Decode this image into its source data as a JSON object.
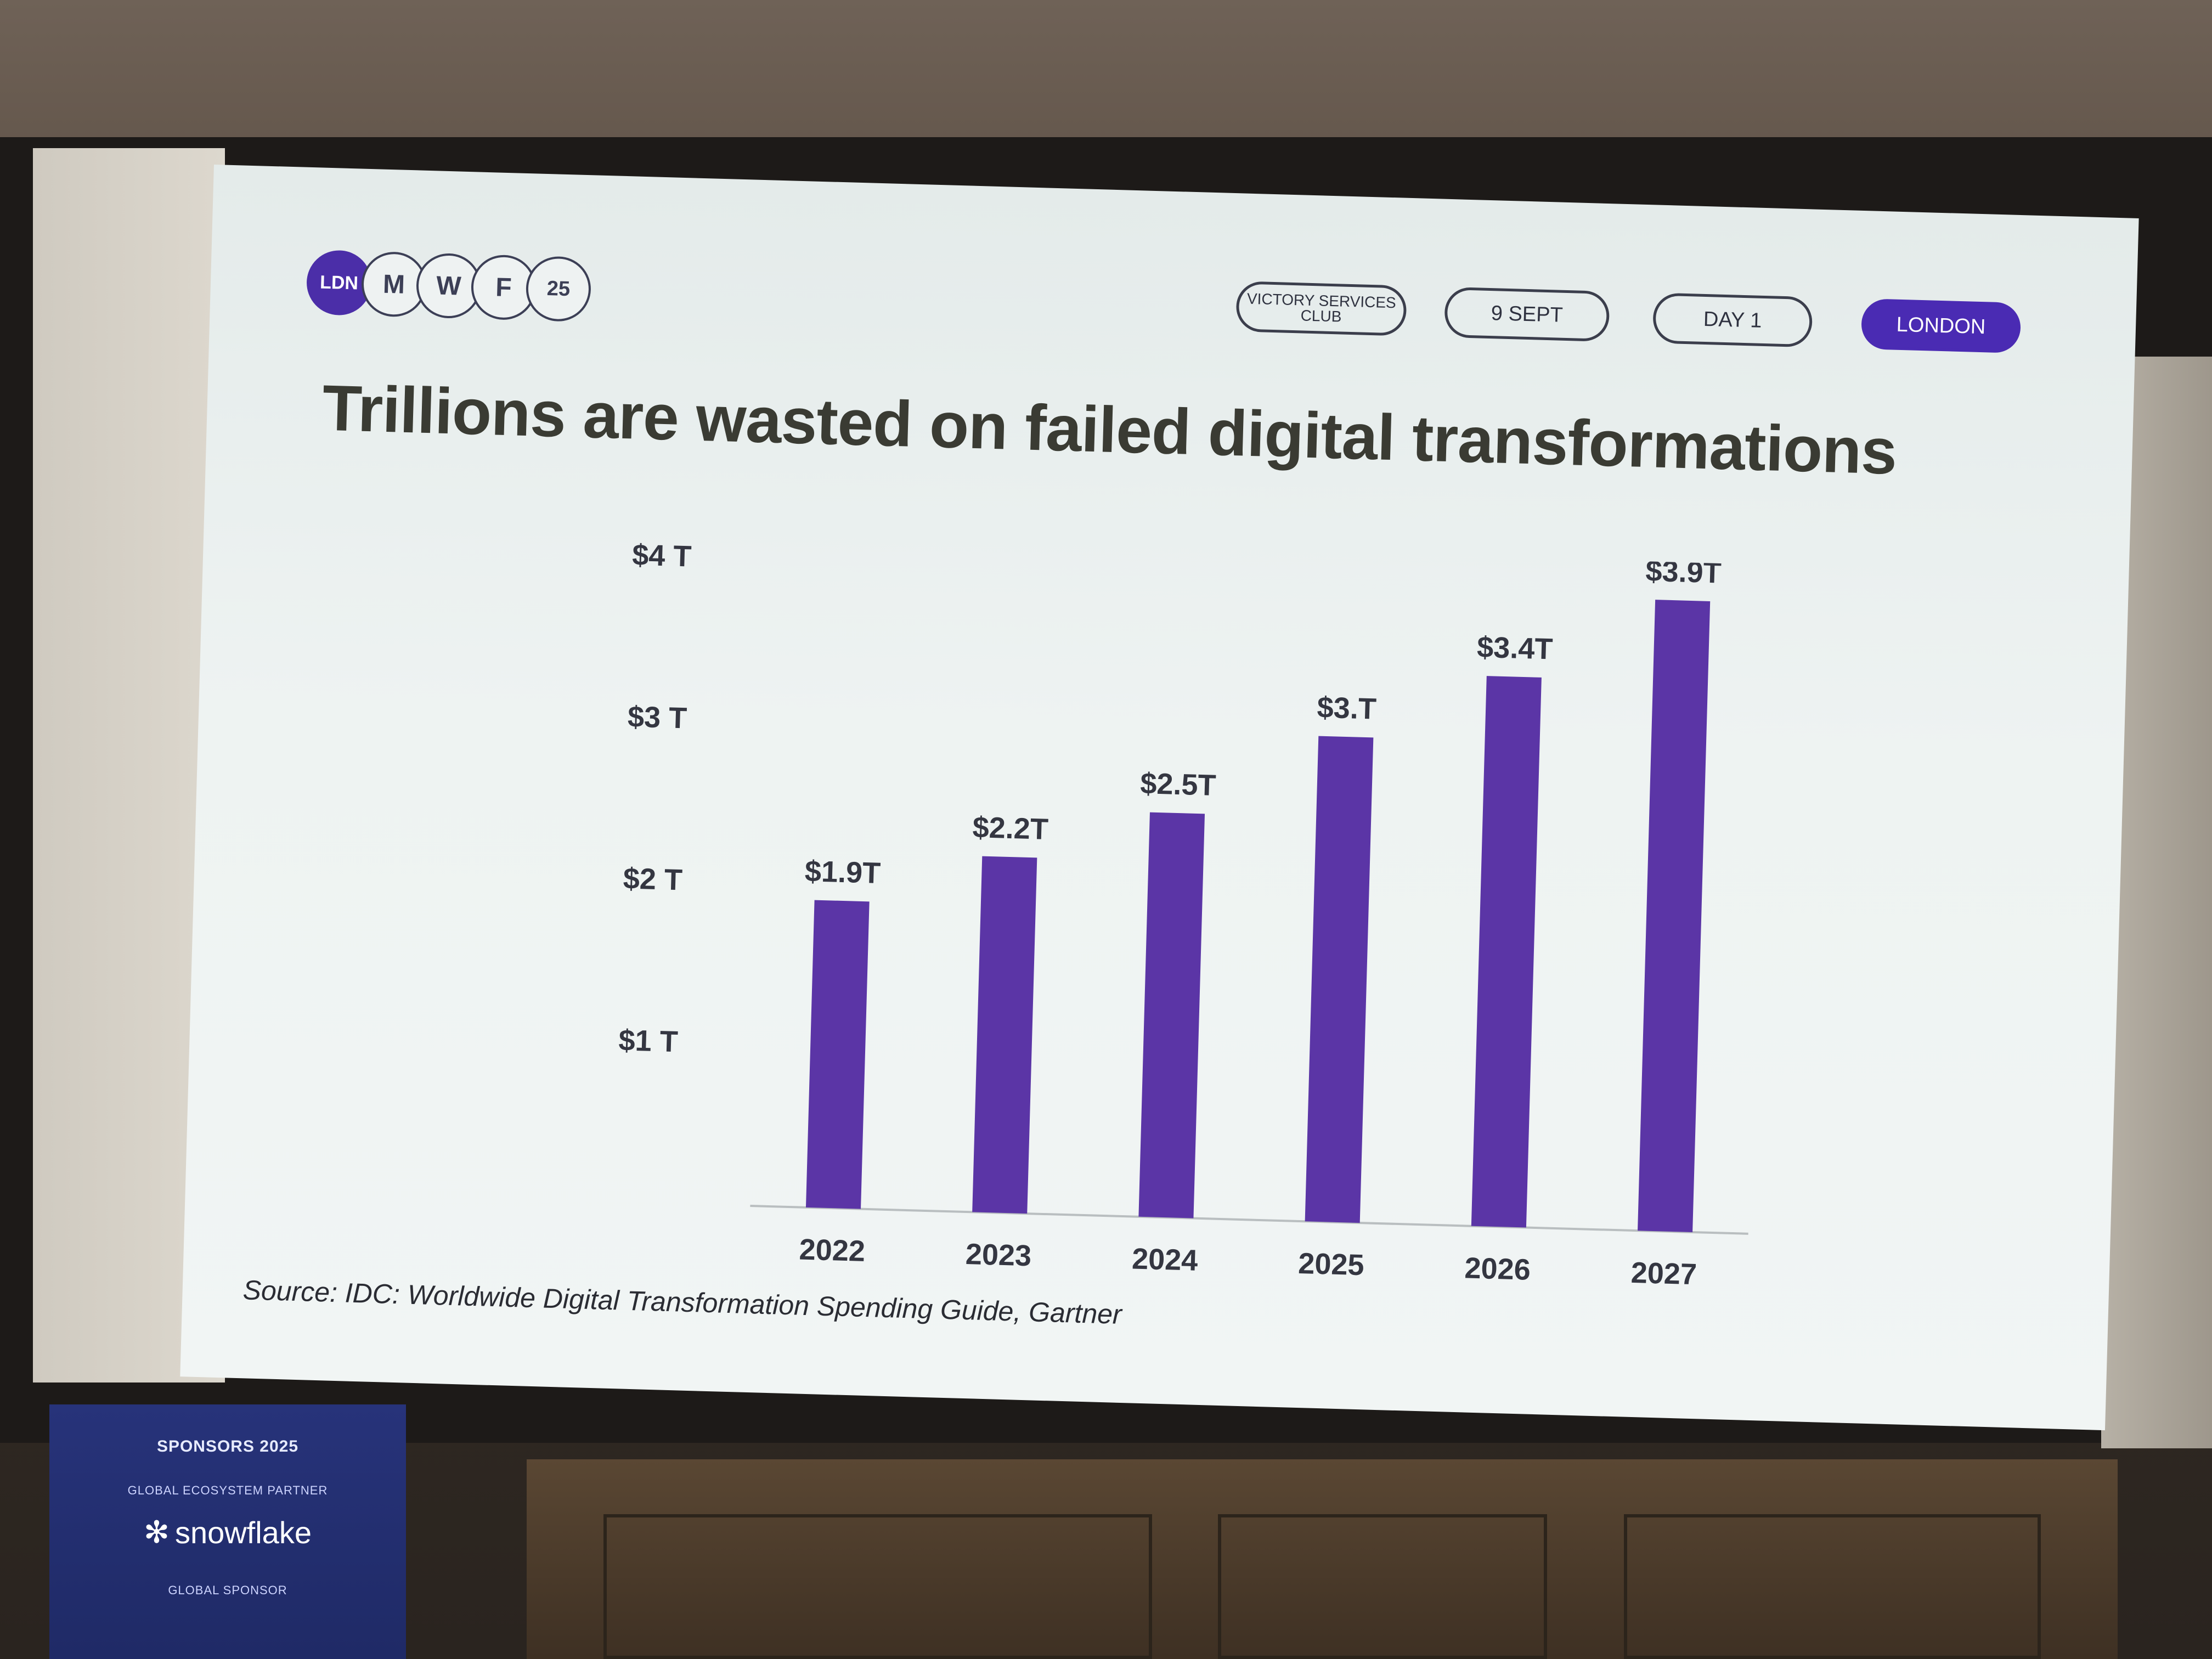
{
  "logo": {
    "circles": [
      "LDN",
      "M",
      "W",
      "F",
      "25"
    ]
  },
  "tags": {
    "venue": "VICTORY SERVICES CLUB",
    "date": "9 SEPT",
    "day": "DAY 1",
    "city": "LONDON"
  },
  "title": "Trillions are wasted on failed digital transformations",
  "source": "Source: IDC: Worldwide Digital Transformation Spending Guide, Gartner",
  "banner": {
    "heading": "SPONSORS 2025",
    "partner_label": "GLOBAL ECOSYSTEM PARTNER",
    "partner_name": "snowflake",
    "sponsor_label": "GLOBAL SPONSOR"
  },
  "colors": {
    "bar": "#5b35a6",
    "accent": "#4a2bb3"
  },
  "chart_data": {
    "type": "bar",
    "title": "Trillions are wasted on failed digital transformations",
    "categories": [
      "2022",
      "2023",
      "2024",
      "2025",
      "2026",
      "2027"
    ],
    "values": [
      1.9,
      2.2,
      2.5,
      3.0,
      3.4,
      3.9
    ],
    "data_labels": [
      "$1.9T",
      "$2.2T",
      "$2.5T",
      "$3.T",
      "$3.4T",
      "$3.9T"
    ],
    "y_ticks": [
      1,
      2,
      3,
      4
    ],
    "y_tick_labels": [
      "$1 T",
      "$2 T",
      "$3 T",
      "$4 T"
    ],
    "ylim": [
      0,
      4
    ],
    "grid": false,
    "legend": "none"
  }
}
